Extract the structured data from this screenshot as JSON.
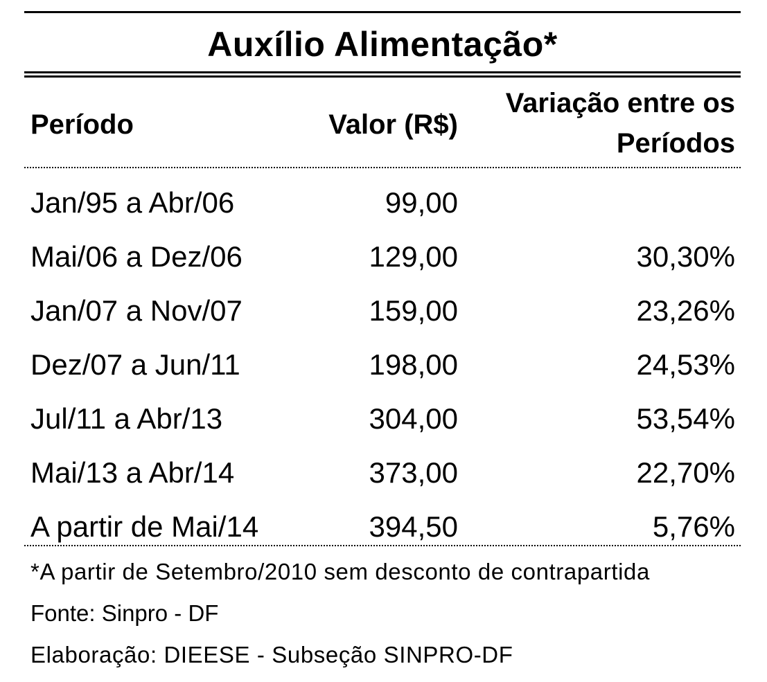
{
  "title": "Auxílio Alimentação*",
  "columns": {
    "periodo": "Período",
    "valor": "Valor (R$)",
    "variacao_line1": "Variação entre os",
    "variacao_line2": "Períodos"
  },
  "rows": [
    {
      "periodo": "Jan/95 a Abr/06",
      "valor": "99,00",
      "variacao": ""
    },
    {
      "periodo": "Mai/06 a Dez/06",
      "valor": "129,00",
      "variacao": "30,30%"
    },
    {
      "periodo": "Jan/07 a Nov/07",
      "valor": "159,00",
      "variacao": "23,26%"
    },
    {
      "periodo": "Dez/07 a Jun/11",
      "valor": "198,00",
      "variacao": "24,53%"
    },
    {
      "periodo": "Jul/11 a Abr/13",
      "valor": "304,00",
      "variacao": "53,54%"
    },
    {
      "periodo": "Mai/13 a Abr/14",
      "valor": "373,00",
      "variacao": "22,70%"
    },
    {
      "periodo": "A partir de Mai/14",
      "valor": "394,50",
      "variacao": "5,76%"
    }
  ],
  "notes": {
    "footnote": "*A partir de Setembro/2010 sem desconto de contrapartida",
    "source": "Fonte: Sinpro - DF",
    "elaboration": "Elaboração: DIEESE - Subseção SINPRO-DF"
  }
}
